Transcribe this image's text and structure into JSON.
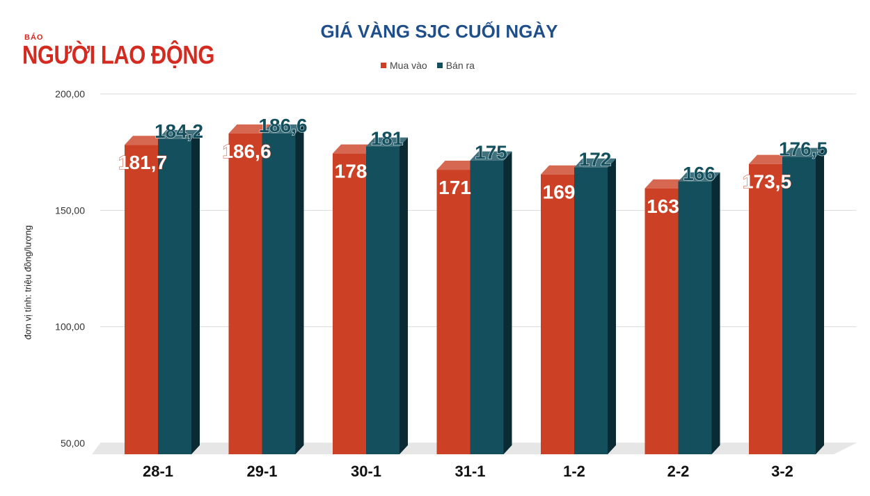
{
  "brand": {
    "small": "BÁO",
    "main": "NGƯỜI LAO ĐỘNG"
  },
  "chart_data": {
    "type": "bar",
    "title": "GIÁ VÀNG SJC CUỐI NGÀY",
    "ylabel": "đơn vị tính: triệu đồng/lượng",
    "xlabel": "",
    "categories": [
      "28-1",
      "29-1",
      "30-1",
      "31-1",
      "1-2",
      "2-2",
      "3-2"
    ],
    "series": [
      {
        "name": "Mua vào",
        "color": "#cc4125",
        "values": [
          181.7,
          186.6,
          178,
          171,
          169,
          163,
          173.5
        ],
        "labels": [
          "181,7",
          "186,6",
          "178",
          "171",
          "169",
          "163",
          "173,5"
        ]
      },
      {
        "name": "Bán ra",
        "color": "#134f5c",
        "values": [
          184.2,
          186.6,
          181,
          175,
          172,
          166,
          176.5
        ],
        "labels": [
          "184,2",
          "186,6",
          "181",
          "175",
          "172",
          "166",
          "176,5"
        ]
      }
    ],
    "ylim": [
      50,
      200
    ],
    "yticks": [
      50,
      100,
      150,
      200
    ],
    "ytick_labels": [
      "50,00",
      "100,00",
      "150,00",
      "200,00"
    ],
    "legend": "top",
    "grid": true,
    "style": "3d-column"
  }
}
